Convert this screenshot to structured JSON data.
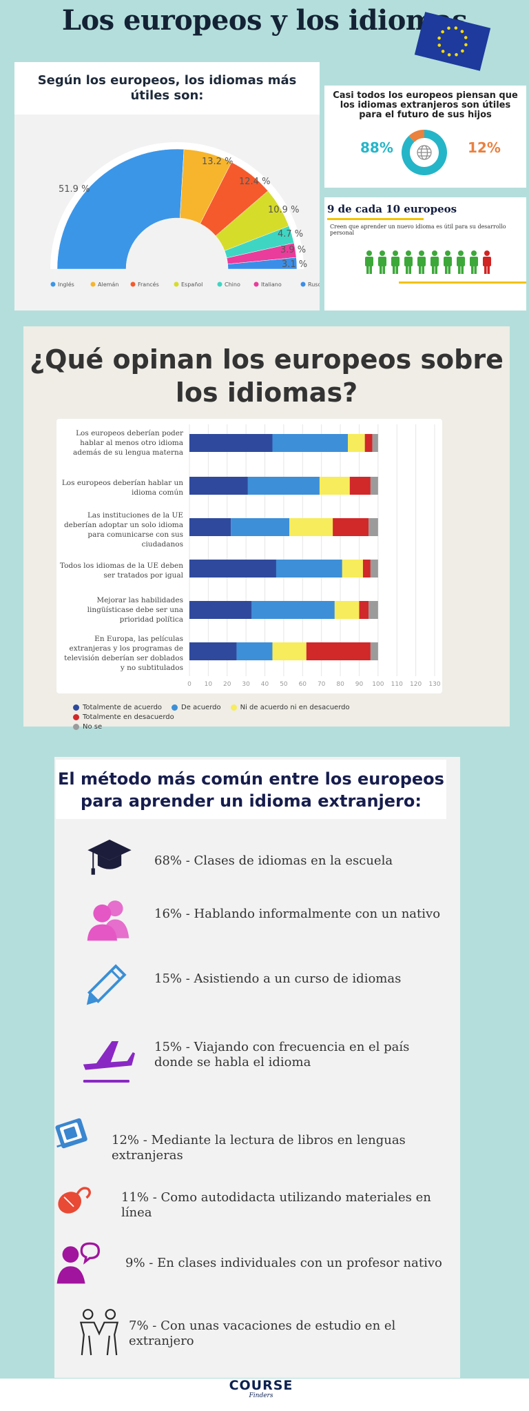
{
  "title": "Los europeos y los idiomas",
  "pie": {
    "title": "Según los europeos, los idiomas más útiles son:",
    "colors": [
      "#3b96e8",
      "#f6b52c",
      "#f55a2c",
      "#d6dc2a",
      "#3ed6c3",
      "#ea3c9a",
      "#3b8ee8"
    ]
  },
  "percent_panel": {
    "title": "Casi todos los europeos piensan que los idiomas extranjeros son útiles para el futuro de sus hijos",
    "left_value": "88%",
    "right_value": "12%",
    "icon": "globe-icon"
  },
  "nine_panel": {
    "title": "9 de cada 10 europeos",
    "subtitle": "Creen que aprender un nuevo idioma es útil para su desarrollo personal",
    "green_count": 9,
    "red_count": 1,
    "icon": "person-icon"
  },
  "opinion": {
    "title": "¿Qué opinan los europeos sobre los idiomas?",
    "colors": [
      "#2f4a9c",
      "#3d8fd8",
      "#f7ec5b",
      "#d1282a",
      "#9b9b9b"
    ]
  },
  "methods": {
    "title": "El método más común entre los europeos para aprender un idioma extranjero:",
    "items": [
      {
        "text": "68% - Clases de idiomas en la escuela",
        "icon": "graduation-cap-icon",
        "color": "#1c1d3a"
      },
      {
        "text": "16% - Hablando informalmente con un nativo",
        "icon": "people-icon",
        "color": "#e457c5"
      },
      {
        "text": "15% - Asistiendo a un curso de idiomas",
        "icon": "pencil-icon",
        "color": "#3a8fd6"
      },
      {
        "text": "15% - Viajando con frecuencia en el país donde se habla el idioma",
        "icon": "airplane-icon",
        "color": "#8a28c4"
      },
      {
        "text": "12% - Mediante la lectura de libros en lenguas extranjeras",
        "icon": "book-icon",
        "color": "#3a86cf"
      },
      {
        "text": "11% - Como autodidacta utilizando materiales en línea",
        "icon": "mouse-icon",
        "color": "#e84a35"
      },
      {
        "text": "9% - En clases individuales con un profesor nativo",
        "icon": "speaking-person-icon",
        "color": "#a1149e"
      },
      {
        "text": "7% - Con unas vacaciones de estudio en el extranjero",
        "icon": "travelers-icon",
        "color": "#2a2a2a"
      }
    ]
  },
  "footer": {
    "logo_main": "COURSE",
    "logo_sub": "Finders"
  },
  "chart_data": [
    {
      "type": "pie",
      "variant": "half-donut",
      "categories": [
        "Inglés",
        "Alemán",
        "Francés",
        "Español",
        "Chino",
        "Italiano",
        "Ruso"
      ],
      "values": [
        51.9,
        13.2,
        12.4,
        10.9,
        4.7,
        3.9,
        3.1
      ],
      "value_labels": [
        "51.9 %",
        "13.2 %",
        "12.4 %",
        "10.9 %",
        "4.7 %",
        "3.9 %",
        "3.1 %"
      ],
      "legend": "bottom"
    },
    {
      "type": "pie",
      "variant": "donut",
      "values": [
        88,
        12
      ]
    },
    {
      "type": "bar",
      "orientation": "horizontal",
      "stacked": true,
      "categories": [
        "Los europeos deberían poder hablar al menos otro idioma además de su lengua materna",
        "Los europeos deberían hablar un idioma común",
        "Las instituciones de la UE deberían adoptar un solo idioma para comunicarse con sus ciudadanos",
        "Todos los idiomas de la UE deben ser tratados por igual",
        "Mejorar las habilidades lingüísticase debe ser una prioridad política",
        "En Europa, las películas extranjeras y los programas de televisión deberían ser doblados y no subtitulados"
      ],
      "series": [
        {
          "name": "Totalmente de acuerdo",
          "values": [
            44,
            31,
            22,
            46,
            33,
            25
          ]
        },
        {
          "name": "De acuerdo",
          "values": [
            40,
            38,
            31,
            35,
            44,
            19
          ]
        },
        {
          "name": "Ni de acuerdo ni en desacuerdo",
          "values": [
            9,
            16,
            23,
            11,
            13,
            18
          ]
        },
        {
          "name": "Totalmente en desacuerdo",
          "values": [
            4,
            11,
            19,
            4,
            5,
            34
          ]
        },
        {
          "name": "No se",
          "values": [
            3,
            4,
            5,
            4,
            5,
            4
          ]
        }
      ],
      "xlim": [
        0,
        130
      ],
      "xticks": [
        0,
        10,
        20,
        30,
        40,
        50,
        60,
        70,
        80,
        90,
        100,
        110,
        120,
        130
      ],
      "legend": "bottom",
      "grid": true
    }
  ]
}
